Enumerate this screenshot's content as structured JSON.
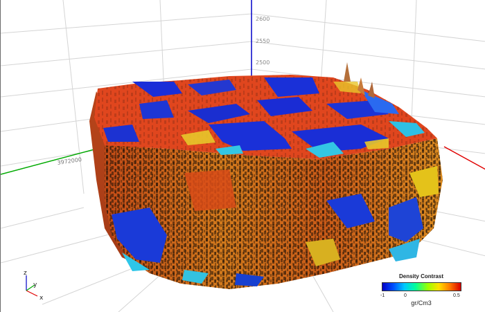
{
  "viewer": {
    "z_axis_ticks": [
      "2600",
      "2550",
      "2500"
    ],
    "y_axis_tick": "3972000"
  },
  "legend": {
    "title": "Density Contrast",
    "min_label": "-1",
    "mid_label": "0",
    "max_label": "0.5",
    "units": "gr/Cm3",
    "colormap": [
      "#0000c8",
      "#0050ff",
      "#00c8ff",
      "#00ff9c",
      "#9cff00",
      "#ffe000",
      "#ff7a00",
      "#d80000"
    ]
  },
  "orientation_triad": {
    "z": "z",
    "y": "y",
    "x": "x"
  },
  "colors": {
    "z_axis": "#0000c8",
    "y_axis": "#00aa00",
    "x_axis": "#e00000",
    "grid": "#cfcfcf"
  }
}
